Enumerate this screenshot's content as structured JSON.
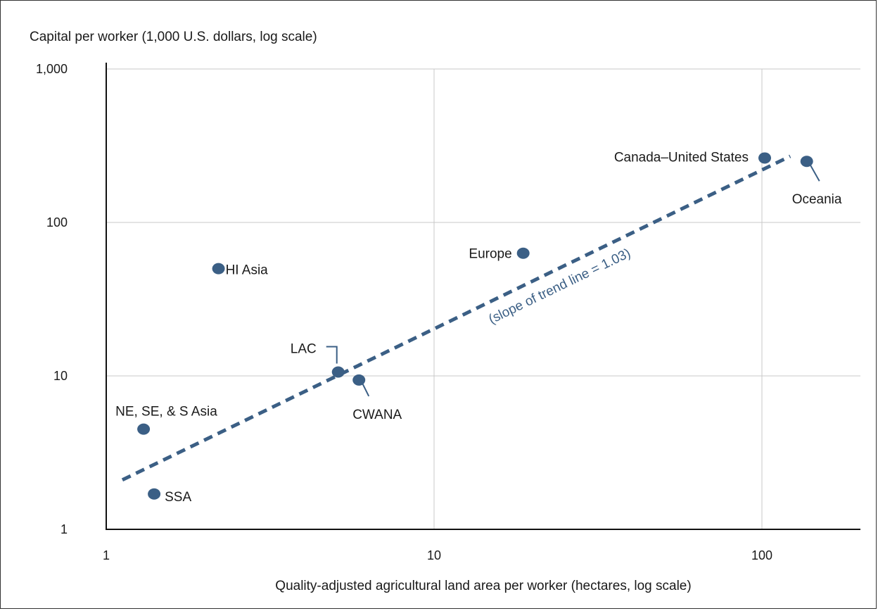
{
  "chart_data": {
    "type": "scatter",
    "ylabel": "Capital per worker (1,000 U.S. dollars, log scale)",
    "xlabel": "Quality-adjusted agricultural land area per worker (hectares, log scale)",
    "x_scale": "log",
    "y_scale": "log",
    "xlim": [
      1,
      180
    ],
    "ylim": [
      1,
      1000
    ],
    "x_ticks": [
      1,
      10,
      100
    ],
    "x_tick_labels": [
      "1",
      "10",
      "100"
    ],
    "y_ticks": [
      1,
      10,
      100,
      1000
    ],
    "y_tick_labels": [
      "1",
      "10",
      "100",
      "1,000"
    ],
    "grid": true,
    "point_color": "#3b5f85",
    "trend_color": "#3b5f85",
    "points": [
      {
        "label": "HI Asia",
        "x": 2.2,
        "y": 50
      },
      {
        "label": "NE, SE, & S Asia",
        "x": 1.3,
        "y": 4.5
      },
      {
        "label": "SSA",
        "x": 1.4,
        "y": 1.7
      },
      {
        "label": "LAC",
        "x": 5.1,
        "y": 10.6
      },
      {
        "label": "CWANA",
        "x": 5.9,
        "y": 9.4
      },
      {
        "label": "Europe",
        "x": 18.7,
        "y": 63
      },
      {
        "label": "Canada–United States",
        "x": 102,
        "y": 263
      },
      {
        "label": "Oceania",
        "x": 137,
        "y": 250
      }
    ],
    "trend_line": {
      "label": "(slope of trend line = 1.03)",
      "slope": 1.03,
      "start": {
        "x": 1.12,
        "y": 2.1
      },
      "end": {
        "x": 122,
        "y": 270
      }
    }
  }
}
